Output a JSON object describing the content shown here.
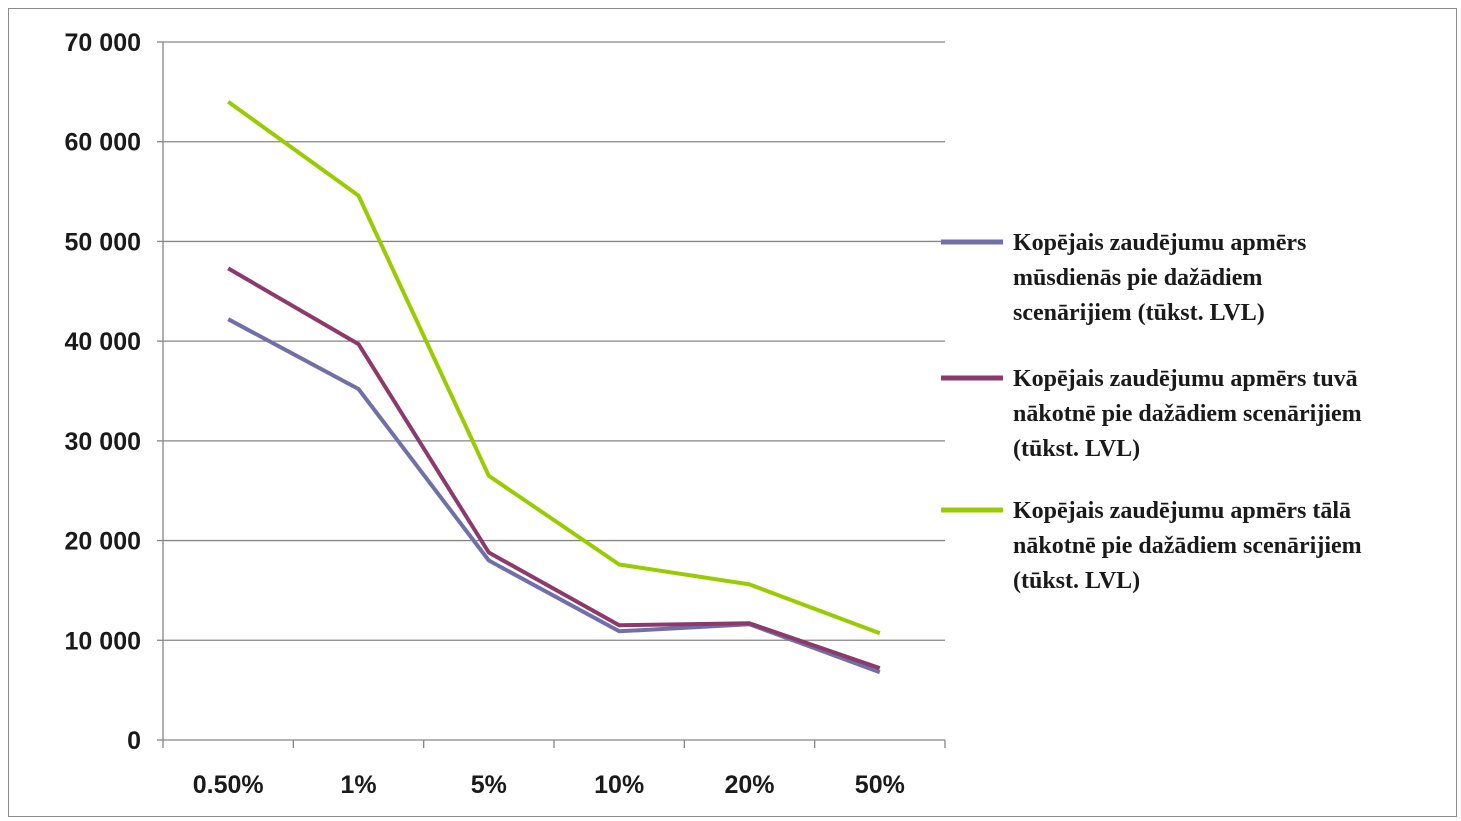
{
  "chart_data": {
    "type": "line",
    "title": "",
    "xlabel": "",
    "ylabel": "",
    "categories": [
      "0.50%",
      "1%",
      "5%",
      "10%",
      "20%",
      "50%"
    ],
    "ylim": [
      0,
      70000
    ],
    "y_ticks": [
      "0",
      "10 000",
      "20 000",
      "30 000",
      "40 000",
      "50 000",
      "60 000",
      "70 000"
    ],
    "grid": true,
    "legend_position": "right",
    "series": [
      {
        "name": "Kopējais zaudējumu apmērs mūsdienās pie dažādiem scenārijiem (tūkst. LVL)",
        "legend_lines": [
          "Kopējais zaudējumu apmērs",
          "mūsdienās pie dažādiem",
          "scenārijiem (tūkst. LVL)"
        ],
        "color": "#7070a8",
        "values": [
          42200,
          35200,
          18000,
          10900,
          11600,
          6800
        ]
      },
      {
        "name": "Kopējais zaudējumu apmērs tuvā nākotnē pie dažādiem scenārijiem (tūkst. LVL)",
        "legend_lines": [
          "Kopējais zaudējumu apmērs tuvā",
          "nākotnē pie dažādiem scenārijiem",
          "(tūkst. LVL)"
        ],
        "color": "#8b3a6b",
        "values": [
          47300,
          39700,
          18800,
          11500,
          11700,
          7200
        ]
      },
      {
        "name": "Kopējais zaudējumu apmērs tālā nākotnē pie dažādiem scenārijiem (tūkst. LVL)",
        "legend_lines": [
          "Kopējais zaudējumu apmērs tālā",
          "nākotnē pie dažādiem scenārijiem",
          "(tūkst. LVL)"
        ],
        "color": "#99cc00",
        "values": [
          64000,
          54600,
          26500,
          17600,
          15600,
          10700
        ]
      }
    ]
  }
}
